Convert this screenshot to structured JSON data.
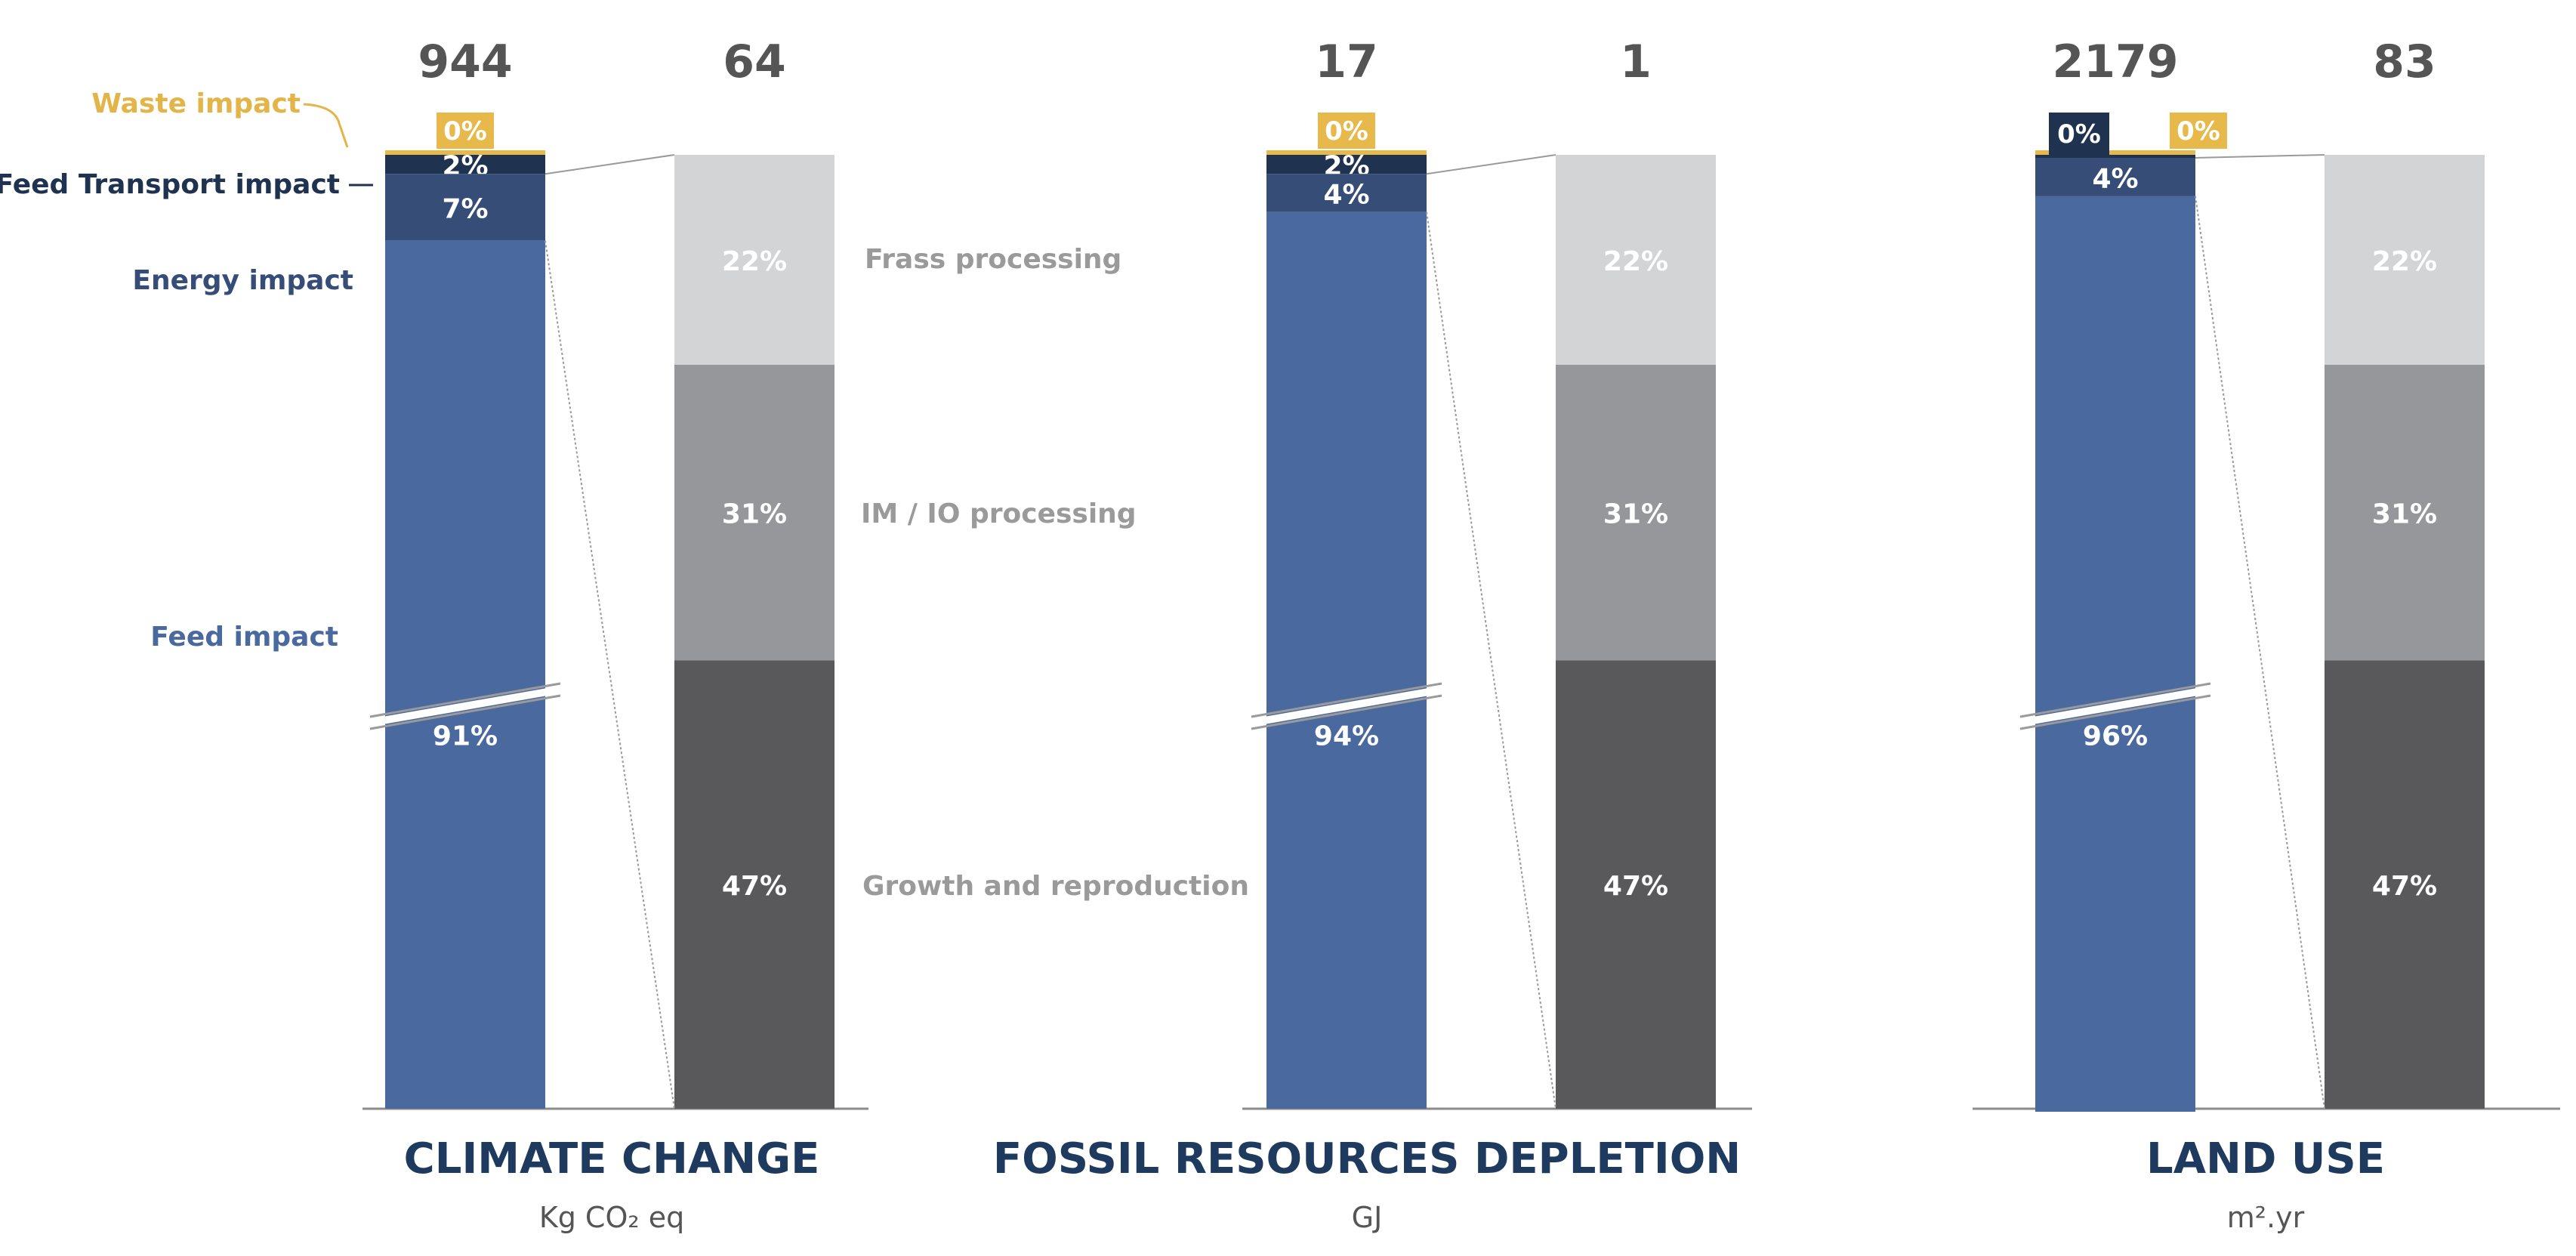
{
  "colors": {
    "waste": "#E7B84A",
    "transport": "#1F3350",
    "energy": "#364D78",
    "feed": "#4A699F",
    "frass": "#D3D4D6",
    "imio": "#96979A",
    "growth": "#59595B",
    "total_label": "#555555",
    "left_label_waste": "#E3B448",
    "left_label_transport": "#1F3350",
    "left_label_energy": "#364D78",
    "left_label_feed": "#4A699F",
    "mid_label": "#9A9A9A",
    "title": "#1F3A5F",
    "unit": "#555555",
    "baseline": "#8C8C8C"
  },
  "chart_data": [
    {
      "type": "bar",
      "stacked": true,
      "title": "CLIMATE CHANGE",
      "unit": "Kg  CO₂  eq",
      "totals": [
        "944",
        "64"
      ],
      "feed_bar": [
        {
          "name": "Waste impact",
          "value": 0,
          "label": "0%"
        },
        {
          "name": "Feed Transport impact",
          "value": 2,
          "label": "2%"
        },
        {
          "name": "Energy impact",
          "value": 7,
          "label": "7%"
        },
        {
          "name": "Feed impact",
          "value": 91,
          "label": "91%"
        }
      ],
      "process_bar": [
        {
          "name": "Frass processing",
          "value": 22,
          "label": "22%"
        },
        {
          "name": "IM / IO processing",
          "value": 31,
          "label": "31%"
        },
        {
          "name": "Growth and reproduction",
          "value": 47,
          "label": "47%"
        }
      ]
    },
    {
      "type": "bar",
      "stacked": true,
      "title": "FOSSIL RESOURCES DEPLETION",
      "unit": "GJ",
      "totals": [
        "17",
        "1"
      ],
      "feed_bar": [
        {
          "name": "Waste impact",
          "value": 0,
          "label": "0%"
        },
        {
          "name": "Feed Transport impact",
          "value": 2,
          "label": "2%"
        },
        {
          "name": "Energy impact",
          "value": 4,
          "label": "4%"
        },
        {
          "name": "Feed impact",
          "value": 94,
          "label": "94%"
        }
      ],
      "process_bar": [
        {
          "name": "Frass processing",
          "value": 22,
          "label": "22%"
        },
        {
          "name": "IM / IO processing",
          "value": 31,
          "label": "31%"
        },
        {
          "name": "Growth and reproduction",
          "value": 47,
          "label": "47%"
        }
      ]
    },
    {
      "type": "bar",
      "stacked": true,
      "title": "LAND USE",
      "unit": "m².yr",
      "totals": [
        "2179",
        "83"
      ],
      "feed_bar": [
        {
          "name": "Waste impact",
          "value": 0,
          "label": "0%"
        },
        {
          "name": "Feed Transport impact",
          "value": 0,
          "label": "0%"
        },
        {
          "name": "Energy impact",
          "value": 4,
          "label": "4%"
        },
        {
          "name": "Feed impact",
          "value": 96,
          "label": "96%"
        }
      ],
      "process_bar": [
        {
          "name": "Frass processing",
          "value": 22,
          "label": "22%"
        },
        {
          "name": "IM / IO processing",
          "value": 31,
          "label": "31%"
        },
        {
          "name": "Growth and reproduction",
          "value": 47,
          "label": "47%"
        }
      ]
    }
  ],
  "left_labels": {
    "waste": "Waste impact",
    "transport": "Feed Transport impact",
    "energy": "Energy impact",
    "feed": "Feed impact"
  },
  "middle_labels": {
    "frass": "Frass processing",
    "imio": "IM / IO processing",
    "growth": "Growth and reproduction"
  }
}
